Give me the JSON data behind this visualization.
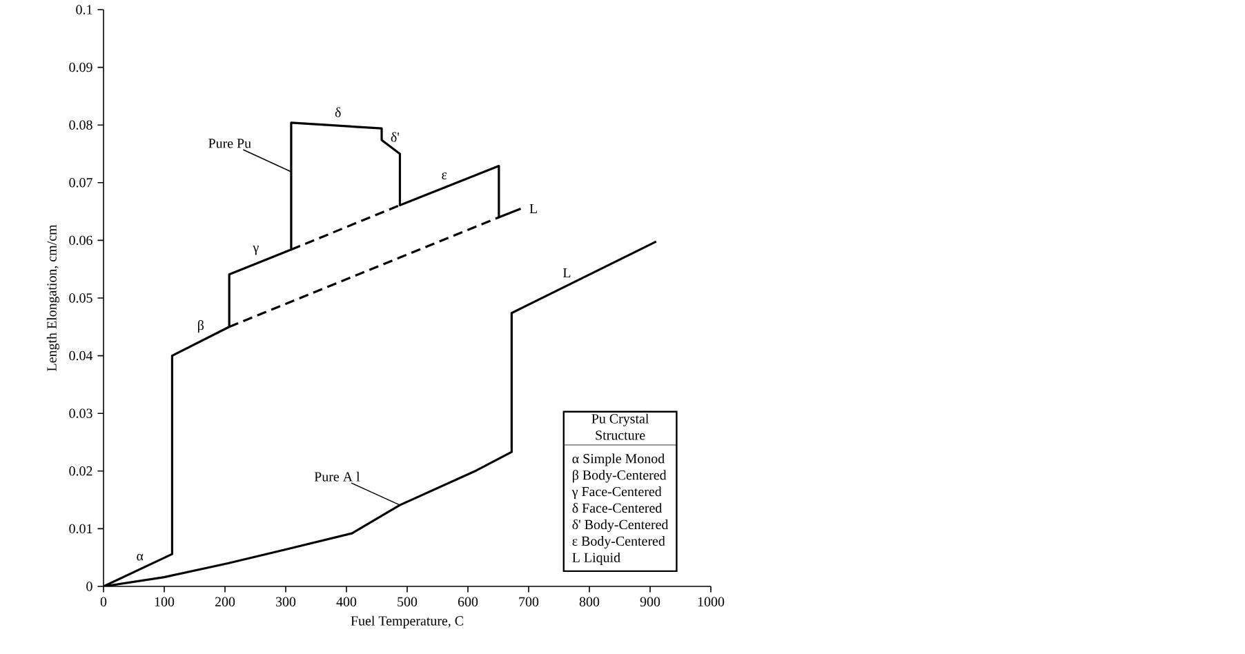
{
  "chart_data": {
    "type": "line",
    "xlabel": "Fuel Temperature, C",
    "ylabel": "Length Elongation, cm/cm",
    "xlim": [
      0,
      1000
    ],
    "ylim": [
      0,
      0.1
    ],
    "xticks": [
      0,
      100,
      200,
      300,
      400,
      500,
      600,
      700,
      800,
      900,
      1000
    ],
    "yticks": [
      0,
      0.01,
      0.02,
      0.03,
      0.04,
      0.05,
      0.06,
      0.07,
      0.08,
      0.09,
      0.1
    ],
    "marker": "none",
    "grid": false,
    "series": [
      {
        "name": "Pure Pu",
        "color": "#000000",
        "line_style": "solid",
        "x": [
          0,
          113,
          113,
          207,
          207,
          309,
          309,
          458,
          458,
          488,
          488,
          651,
          651,
          687
        ],
        "values": [
          0,
          0.0056,
          0.04,
          0.045,
          0.0541,
          0.0584,
          0.0804,
          0.0794,
          0.0774,
          0.075,
          0.0661,
          0.0729,
          0.064,
          0.0655
        ]
      },
      {
        "color": "#000000",
        "line_style": "dashed",
        "x": [
          309,
          488
        ],
        "values": [
          0.0584,
          0.0661
        ]
      },
      {
        "color": "#000000",
        "line_style": "dashed",
        "x": [
          207,
          651
        ],
        "values": [
          0.045,
          0.064
        ]
      },
      {
        "name": "Pure A l",
        "color": "#000000",
        "line_style": "solid",
        "x": [
          0,
          100,
          205,
          300,
          409,
          488,
          614,
          672,
          672,
          910
        ],
        "values": [
          0,
          0.0016,
          0.004,
          0.0064,
          0.0092,
          0.0141,
          0.0201,
          0.0233,
          0.0474,
          0.0598
        ]
      }
    ],
    "annotations": [
      {
        "text": "α",
        "x": 60,
        "y": 0.003
      },
      {
        "text": "β",
        "x": 160,
        "y": 0.0425
      },
      {
        "text": "γ",
        "x": 251,
        "y": 0.056
      },
      {
        "text": "δ",
        "x": 386,
        "y": 0.0799
      },
      {
        "text": "δ'",
        "x": 480,
        "y": 0.0756
      },
      {
        "text": "ε",
        "x": 561,
        "y": 0.0691
      },
      {
        "text": "L",
        "x": 687,
        "y": 0.0655
      },
      {
        "text": "L",
        "x": 763,
        "y": 0.0521
      },
      "Pu Crystal Structure",
      "α  Simple Monod",
      "β  Body-Centered",
      "γ  Face-Centered",
      "δ  Face-Centered",
      "δ'  Body-Centered",
      "ε  Body-Centered",
      "L  Liquid"
    ]
  }
}
